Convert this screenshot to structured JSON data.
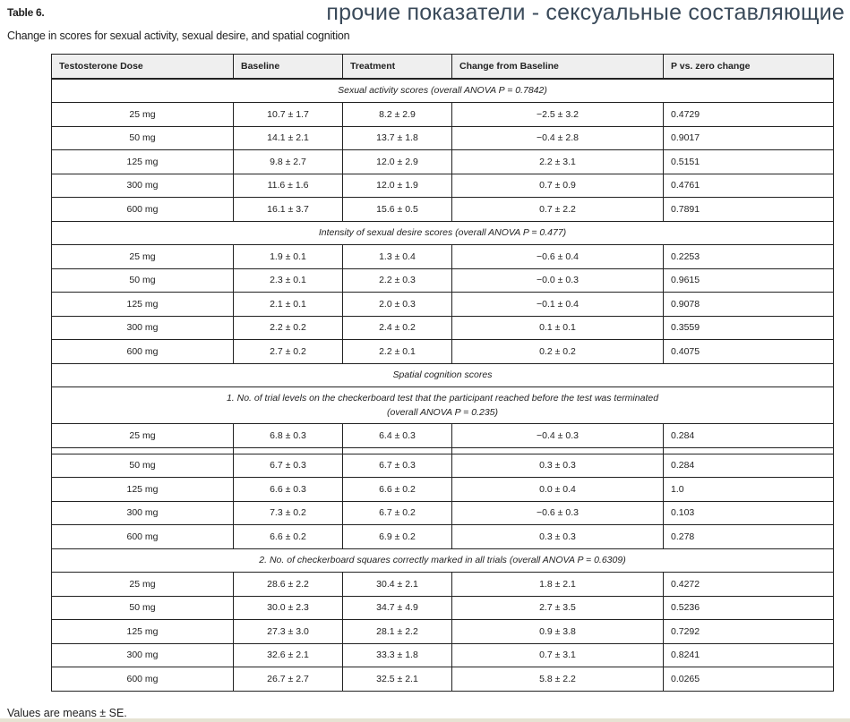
{
  "table_label": "Table 6.",
  "overlay_title": "прочие показатели - сексуальные составляющие",
  "caption": "Change in scores for sexual activity, sexual desire, and spatial cognition",
  "columns": [
    "Testosterone Dose",
    "Baseline",
    "Treatment",
    "Change from Baseline",
    "P vs. zero change"
  ],
  "sections": [
    {
      "title": "Sexual activity scores (overall ANOVA P = 0.7842)",
      "rows": [
        [
          "25 mg",
          "10.7 ± 1.7",
          "8.2 ± 2.9",
          "−2.5 ± 3.2",
          "0.4729"
        ],
        [
          "50 mg",
          "14.1 ± 2.1",
          "13.7 ± 1.8",
          "−0.4 ± 2.8",
          "0.9017"
        ],
        [
          "125 mg",
          "9.8 ± 2.7",
          "12.0 ± 2.9",
          "2.2 ± 3.1",
          "0.5151"
        ],
        [
          "300 mg",
          "11.6 ± 1.6",
          "12.0 ± 1.9",
          "0.7 ± 0.9",
          "0.4761"
        ],
        [
          "600 mg",
          "16.1 ± 3.7",
          "15.6 ± 0.5",
          "0.7 ± 2.2",
          "0.7891"
        ]
      ]
    },
    {
      "title": "Intensity of sexual desire scores (overall ANOVA P = 0.477)",
      "rows": [
        [
          "25 mg",
          "1.9 ± 0.1",
          "1.3 ± 0.4",
          "−0.6 ± 0.4",
          "0.2253"
        ],
        [
          "50 mg",
          "2.3 ± 0.1",
          "2.2 ± 0.3",
          "−0.0 ± 0.3",
          "0.9615"
        ],
        [
          "125 mg",
          "2.1 ± 0.1",
          "2.0 ± 0.3",
          "−0.1 ± 0.4",
          "0.9078"
        ],
        [
          "300 mg",
          "2.2 ± 0.2",
          "2.4 ± 0.2",
          "0.1 ± 0.1",
          "0.3559"
        ],
        [
          "600 mg",
          "2.7 ± 0.2",
          "2.2 ± 0.1",
          "0.2 ± 0.2",
          "0.4075"
        ]
      ]
    },
    {
      "title": "Spatial cognition scores",
      "rows": []
    },
    {
      "title": "1. No. of trial levels on the checkerboard test that the participant reached before the test was terminated",
      "title2": "(overall ANOVA P = 0.235)",
      "spacer_after_first": true,
      "rows": [
        [
          "25 mg",
          "6.8 ± 0.3",
          "6.4 ± 0.3",
          "−0.4 ± 0.3",
          "0.284"
        ],
        [
          "50 mg",
          "6.7 ± 0.3",
          "6.7 ± 0.3",
          "0.3 ± 0.3",
          "0.284"
        ],
        [
          "125 mg",
          "6.6 ± 0.3",
          "6.6 ± 0.2",
          "0.0 ± 0.4",
          "1.0"
        ],
        [
          "300 mg",
          "7.3 ± 0.2",
          "6.7 ± 0.2",
          "−0.6 ± 0.3",
          "0.103"
        ],
        [
          "600 mg",
          "6.6 ± 0.2",
          "6.9 ± 0.2",
          "0.3 ± 0.3",
          "0.278"
        ]
      ]
    },
    {
      "title": "2. No. of checkerboard squares correctly marked in all trials (overall ANOVA P = 0.6309)",
      "rows": [
        [
          "25 mg",
          "28.6 ± 2.2",
          "30.4 ± 2.1",
          "1.8 ± 2.1",
          "0.4272"
        ],
        [
          "50 mg",
          "30.0 ± 2.3",
          "34.7 ± 4.9",
          "2.7 ± 3.5",
          "0.5236"
        ],
        [
          "125 mg",
          "27.3 ± 3.0",
          "28.1 ± 2.2",
          "0.9 ± 3.8",
          "0.7292"
        ],
        [
          "300 mg",
          "32.6 ± 2.1",
          "33.3 ± 1.8",
          "0.7 ± 3.1",
          "0.8241"
        ],
        [
          "600 mg",
          "26.7 ± 2.7",
          "32.5 ± 2.1",
          "5.8 ± 2.2",
          "0.0265"
        ]
      ]
    }
  ],
  "footer": "Values are means ± SE."
}
